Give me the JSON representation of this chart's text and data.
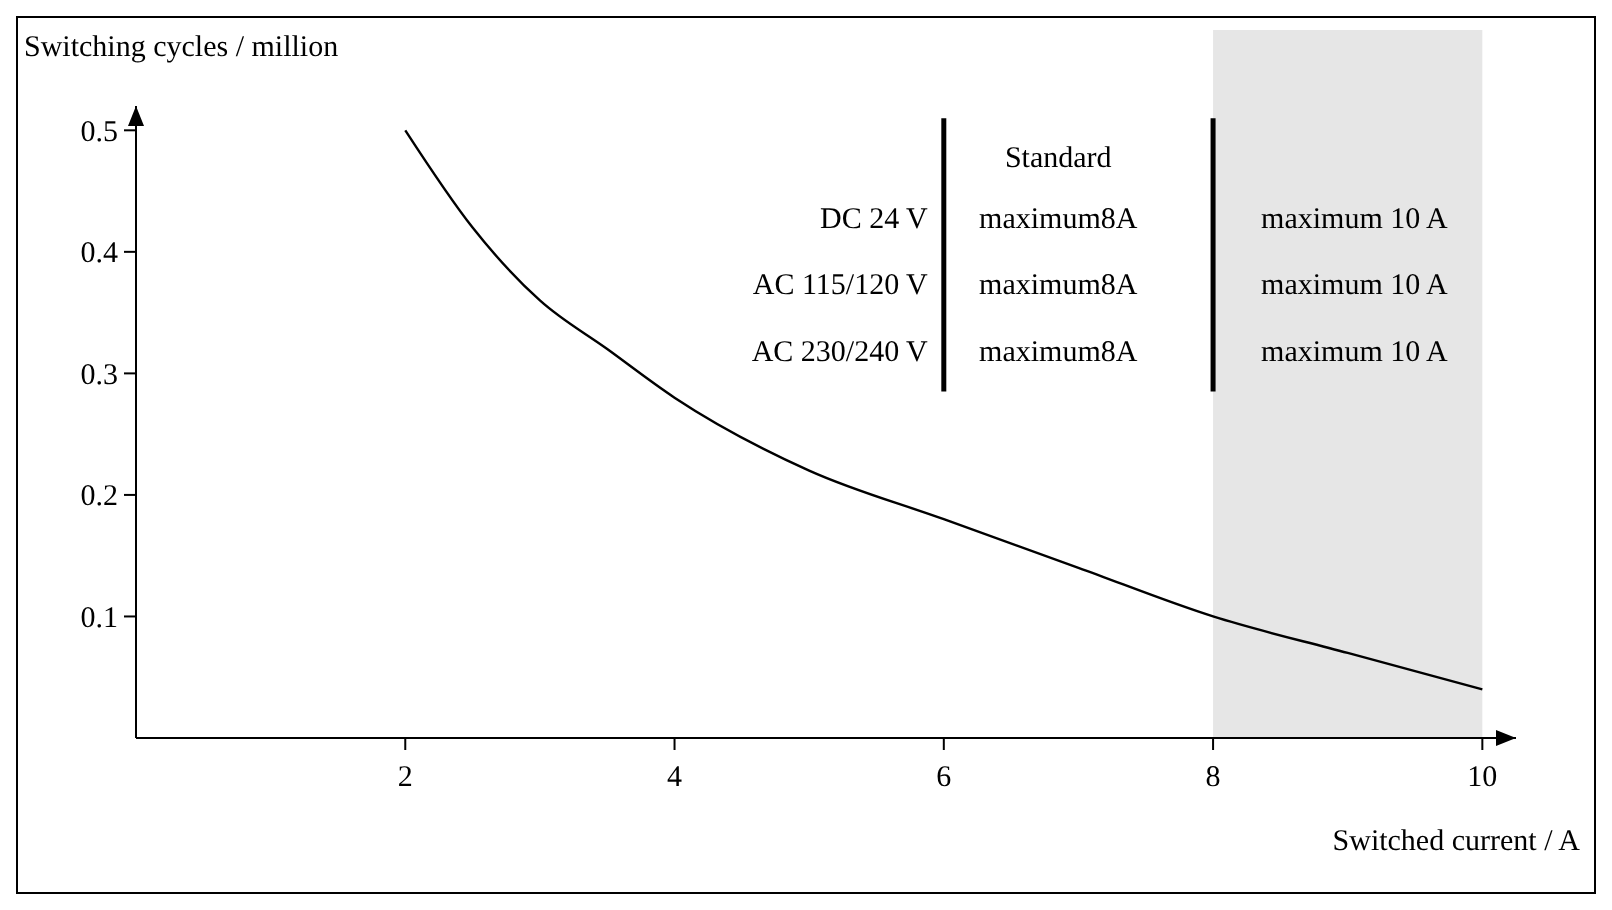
{
  "chart_data": {
    "type": "line",
    "xlabel": "Switched current / A",
    "ylabel": "Switching cycles / million",
    "x": [
      2,
      2.5,
      3,
      3.5,
      4,
      5,
      6,
      7,
      8,
      9,
      10
    ],
    "values": [
      0.5,
      0.42,
      0.36,
      0.32,
      0.28,
      0.22,
      0.18,
      0.14,
      0.1,
      0.07,
      0.04
    ],
    "color": "#000000",
    "xlim": [
      0,
      10.25
    ],
    "ylim": [
      0,
      0.52
    ],
    "xticks": [
      2,
      4,
      6,
      8,
      10
    ],
    "yticks": [
      0.1,
      0.2,
      0.3,
      0.4,
      0.5
    ],
    "grid": false,
    "marker": "none",
    "line_style": "solid",
    "bands": [
      {
        "axis": "x",
        "from": 8,
        "to": 10,
        "color": "#e6e6e6"
      }
    ],
    "annotations": [
      "Standard",
      "DC 24 V",
      "AC 115/120 V",
      "AC 230/240 V",
      "maximum8A",
      "maximum8A",
      "maximum8A",
      "maximum 10 A",
      "maximum 10 A",
      "maximum 10 A"
    ]
  }
}
